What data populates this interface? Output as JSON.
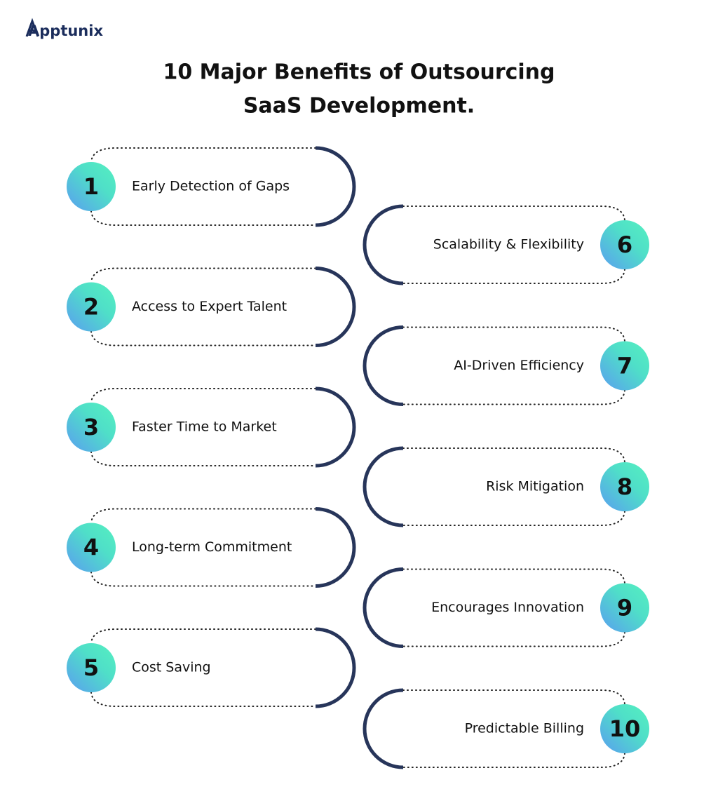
{
  "logo": "Apptunix",
  "title": [
    "10 Major Benefits of Outsourcing",
    "SaaS Development."
  ],
  "items": [
    {
      "number": "1",
      "label": "Early Detection of Gaps"
    },
    {
      "number": "2",
      "label": "Access to Expert Talent"
    },
    {
      "number": "3",
      "label": "Faster Time to Market"
    },
    {
      "number": "4",
      "label": "Long-term Commitment"
    },
    {
      "number": "5",
      "label": "Cost Saving"
    },
    {
      "number": "6",
      "label": "Scalability & Flexibility"
    },
    {
      "number": "7",
      "label": "AI-Driven Efficiency"
    },
    {
      "number": "8",
      "label": "Risk Mitigation"
    },
    {
      "number": "9",
      "label": "Encourages Innovation"
    },
    {
      "number": "10",
      "label": "Predictable Billing"
    }
  ]
}
